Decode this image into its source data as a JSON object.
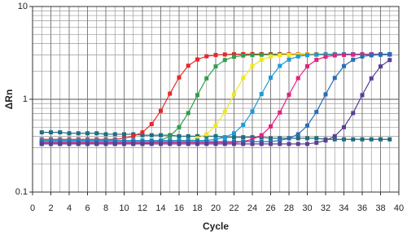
{
  "chart_data": {
    "type": "line",
    "xlabel": "Cycle",
    "ylabel": "ΔRn",
    "x": [
      1,
      2,
      3,
      4,
      5,
      6,
      7,
      8,
      9,
      10,
      11,
      12,
      13,
      14,
      15,
      16,
      17,
      18,
      19,
      20,
      21,
      22,
      23,
      24,
      25,
      26,
      27,
      28,
      29,
      30,
      31,
      32,
      33,
      34,
      35,
      36,
      37,
      38,
      39
    ],
    "xlim": [
      0,
      40
    ],
    "xticks": [
      0,
      2,
      4,
      6,
      8,
      10,
      12,
      14,
      16,
      18,
      20,
      22,
      24,
      26,
      28,
      30,
      32,
      34,
      36,
      38,
      40
    ],
    "ylim": [
      0.1,
      10
    ],
    "yticks": [
      0.1,
      1,
      10
    ],
    "yscale": "log",
    "grid": true,
    "series": [
      {
        "color": "#1e6e7e",
        "values": [
          0.44,
          0.44,
          0.44,
          0.43,
          0.43,
          0.43,
          0.43,
          0.42,
          0.42,
          0.42,
          0.42,
          0.41,
          0.41,
          0.41,
          0.41,
          0.4,
          0.4,
          0.4,
          0.4,
          0.4,
          0.39,
          0.39,
          0.39,
          0.39,
          0.39,
          0.38,
          0.38,
          0.38,
          0.38,
          0.38,
          0.38,
          0.37,
          0.37,
          0.37,
          0.37,
          0.37,
          0.37,
          0.37,
          0.37
        ]
      },
      {
        "color": "#e8262a",
        "values": [
          0.37,
          0.37,
          0.37,
          0.37,
          0.37,
          0.37,
          0.37,
          0.37,
          0.37,
          0.38,
          0.4,
          0.44,
          0.54,
          0.75,
          1.15,
          1.72,
          2.3,
          2.69,
          2.91,
          3.0,
          3.04,
          3.06,
          3.07,
          3.07,
          3.07,
          3.07,
          3.07,
          3.07,
          3.07,
          3.07,
          3.07,
          3.07,
          3.07,
          3.07,
          3.07,
          3.07,
          3.07,
          3.07,
          3.07
        ]
      },
      {
        "color": "#2ea04a",
        "values": [
          0.33,
          0.33,
          0.33,
          0.33,
          0.33,
          0.33,
          0.33,
          0.33,
          0.33,
          0.33,
          0.33,
          0.33,
          0.34,
          0.36,
          0.4,
          0.5,
          0.71,
          1.11,
          1.68,
          2.26,
          2.65,
          2.87,
          2.96,
          3.0,
          3.02,
          3.03,
          3.03,
          3.03,
          3.03,
          3.03,
          3.03,
          3.03,
          3.03,
          3.03,
          3.03,
          3.03,
          3.03,
          3.03,
          3.03
        ]
      },
      {
        "color": "#f2e61e",
        "values": [
          0.35,
          0.35,
          0.35,
          0.35,
          0.35,
          0.35,
          0.35,
          0.35,
          0.35,
          0.35,
          0.35,
          0.35,
          0.35,
          0.35,
          0.35,
          0.35,
          0.36,
          0.38,
          0.42,
          0.52,
          0.73,
          1.13,
          1.7,
          2.28,
          2.67,
          2.89,
          2.98,
          3.02,
          3.04,
          3.05,
          3.05,
          3.05,
          3.05,
          3.05,
          3.05,
          3.05,
          3.05,
          3.05,
          3.05
        ]
      },
      {
        "color": "#1c9ad6",
        "values": [
          0.36,
          0.36,
          0.36,
          0.36,
          0.36,
          0.36,
          0.36,
          0.36,
          0.36,
          0.36,
          0.36,
          0.36,
          0.36,
          0.36,
          0.36,
          0.36,
          0.36,
          0.36,
          0.36,
          0.37,
          0.39,
          0.43,
          0.53,
          0.74,
          1.14,
          1.71,
          2.29,
          2.68,
          2.9,
          2.99,
          3.03,
          3.05,
          3.06,
          3.06,
          3.06,
          3.06,
          3.06,
          3.06,
          3.06
        ]
      },
      {
        "color": "#e6207f",
        "values": [
          0.34,
          0.34,
          0.34,
          0.34,
          0.34,
          0.34,
          0.34,
          0.34,
          0.34,
          0.34,
          0.34,
          0.34,
          0.34,
          0.34,
          0.34,
          0.34,
          0.34,
          0.34,
          0.34,
          0.34,
          0.34,
          0.34,
          0.35,
          0.37,
          0.41,
          0.51,
          0.72,
          1.12,
          1.69,
          2.27,
          2.66,
          2.88,
          2.97,
          3.01,
          3.03,
          3.04,
          3.04,
          3.04,
          3.04
        ]
      },
      {
        "color": "#2a6db4",
        "values": [
          0.35,
          0.35,
          0.35,
          0.35,
          0.35,
          0.35,
          0.35,
          0.35,
          0.35,
          0.35,
          0.35,
          0.35,
          0.35,
          0.35,
          0.35,
          0.35,
          0.35,
          0.35,
          0.35,
          0.35,
          0.35,
          0.35,
          0.35,
          0.35,
          0.35,
          0.35,
          0.36,
          0.38,
          0.42,
          0.52,
          0.73,
          1.13,
          1.7,
          2.28,
          2.67,
          2.89,
          2.98,
          3.02,
          3.04
        ]
      },
      {
        "color": "#5b3e97",
        "values": [
          0.33,
          0.33,
          0.33,
          0.33,
          0.33,
          0.33,
          0.33,
          0.33,
          0.33,
          0.33,
          0.33,
          0.33,
          0.33,
          0.33,
          0.33,
          0.33,
          0.33,
          0.33,
          0.33,
          0.33,
          0.33,
          0.33,
          0.33,
          0.33,
          0.33,
          0.33,
          0.33,
          0.33,
          0.33,
          0.33,
          0.34,
          0.36,
          0.4,
          0.5,
          0.71,
          1.11,
          1.68,
          2.26,
          2.65
        ]
      }
    ]
  }
}
